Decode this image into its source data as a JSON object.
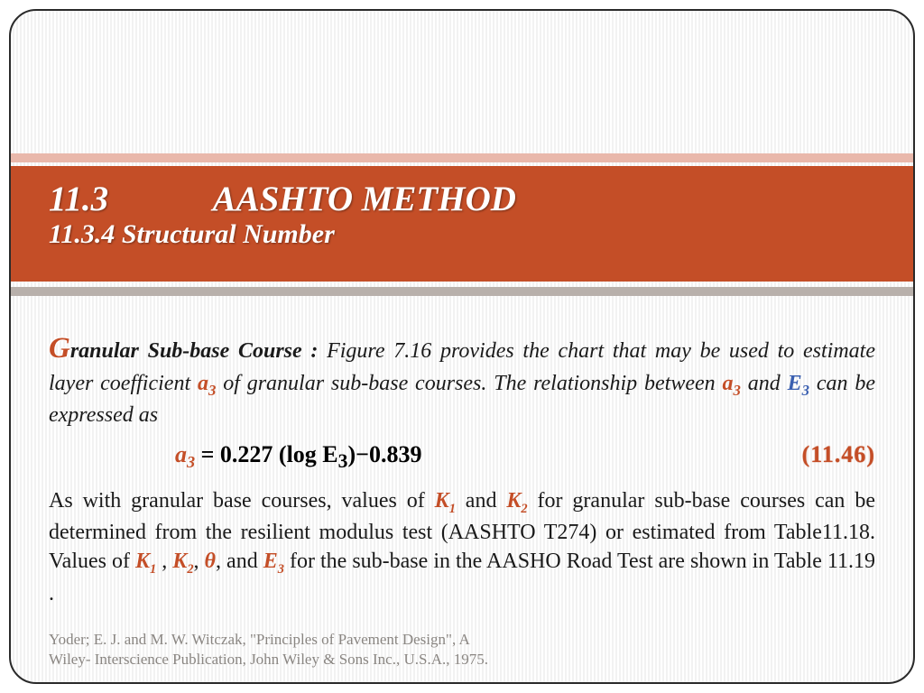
{
  "colors": {
    "accent": "#c44e27",
    "accent_light": "#e9b8ab",
    "band_bottom": "#b8b0ab",
    "text": "#1a1a1a",
    "ref_text": "#8a8682",
    "E_color": "#3a5fb0",
    "background": "#ffffff",
    "stripe": "#f2f2f2",
    "frame_border": "#2a2a2a"
  },
  "title": {
    "main": "11.3            AASHTO METHOD",
    "sub": "11.3.4 Structural Number"
  },
  "body": {
    "drop_cap": "G",
    "lead_bold": "ranular Sub-base Course :",
    "p1_a": " Figure 7.16 provides the chart that may be used to estimate layer coefficient ",
    "sym_a3": "a",
    "sym_a3_sub": "3",
    "p1_b": "  of granular sub-base courses. The relationship between ",
    "p1_c": " and ",
    "sym_E3": "E",
    "sym_E3_sub": "3",
    "p1_d": " can be expressed as"
  },
  "equation": {
    "lhs_var": "a",
    "lhs_sub": "3",
    "text": " = 0.227 (log E",
    "E_sub": "3",
    "tail": ")−0.839",
    "num": "(11.46)"
  },
  "p2": {
    "a": "As with granular base courses, values of ",
    "K1": "K",
    "K1sub": "1",
    "b": " and ",
    "K2": "K",
    "K2sub": "2",
    "c": " for granular sub-base courses can be determined from the resilient modulus test (AASHTO T274) or estimated from Table11.18. Values of ",
    "d": " , ",
    "e": ", ",
    "theta": "θ",
    "f": ", and ",
    "E3": "E",
    "E3sub": "3",
    "g": " for the sub-base in the AASHO Road Test are shown in Table 11.19 ."
  },
  "reference": {
    "line1": "Yoder; E. J. and M. W. Witczak, \"Principles of Pavement Design\", A",
    "line2": "Wiley- Interscience Publication, John Wiley & Sons Inc., U.S.A., 1975."
  }
}
